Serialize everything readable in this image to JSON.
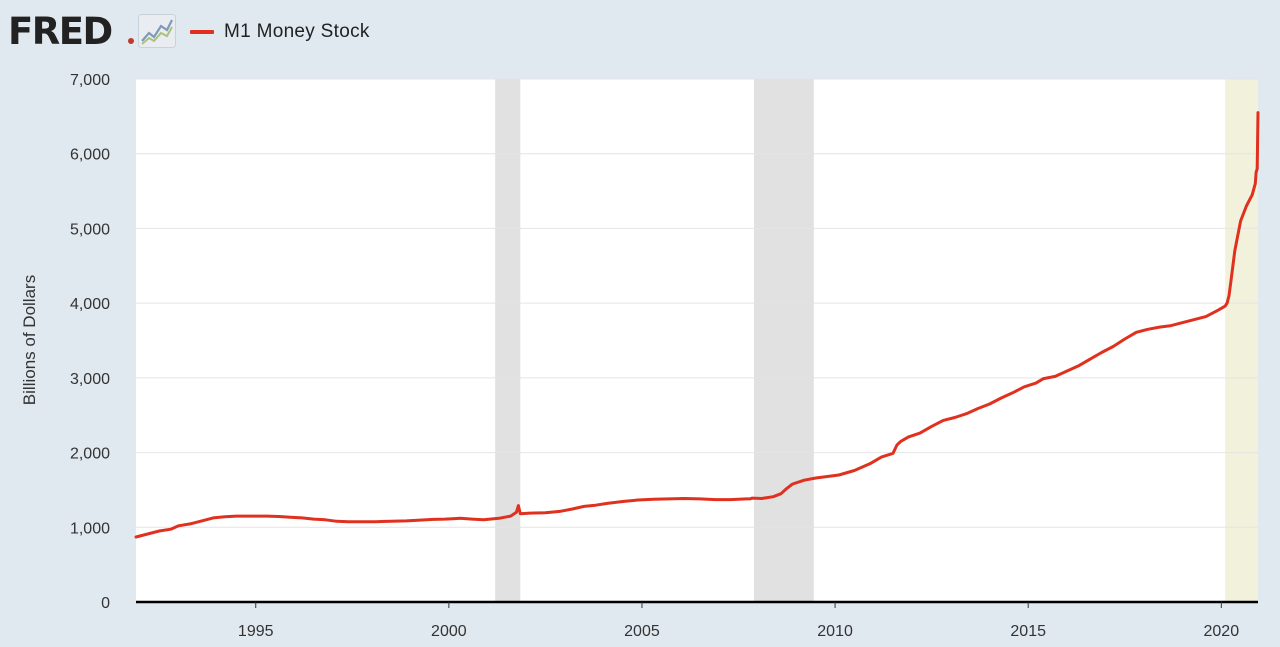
{
  "header": {
    "logo_text": "FRED",
    "legend_label": "M1 Money Stock"
  },
  "colors": {
    "series": "#e0301e",
    "recession": "#e1e1e1",
    "covid": "#f2f1dc",
    "grid": "#e4e4e4",
    "plot_bg": "#ffffff",
    "page_bg": "#e1e9f0"
  },
  "chart_data": {
    "type": "line",
    "title": "",
    "xlabel": "",
    "ylabel": "Billions of Dollars",
    "xlim": [
      1991.9,
      2020.95
    ],
    "ylim": [
      0,
      7000
    ],
    "x_ticks": [
      1995,
      2000,
      2005,
      2010,
      2015,
      2020
    ],
    "x_tick_labels": [
      "1995",
      "2000",
      "2005",
      "2010",
      "2015",
      "2020"
    ],
    "y_ticks": [
      0,
      1000,
      2000,
      3000,
      4000,
      5000,
      6000,
      7000
    ],
    "y_tick_labels": [
      "0",
      "1,000",
      "2,000",
      "3,000",
      "4,000",
      "5,000",
      "6,000",
      "7,000"
    ],
    "grid": "horizontal",
    "shaded_periods": [
      {
        "start": 2001.2,
        "end": 2001.85,
        "kind": "recession"
      },
      {
        "start": 2007.9,
        "end": 2009.45,
        "kind": "recession"
      },
      {
        "start": 2020.1,
        "end": 2020.95,
        "kind": "covid"
      }
    ],
    "series": [
      {
        "name": "M1 Money Stock",
        "x": [
          1991.9,
          1992.2,
          1992.5,
          1992.8,
          1993.0,
          1993.3,
          1993.6,
          1993.9,
          1994.2,
          1994.5,
          1994.8,
          1995.0,
          1995.3,
          1995.6,
          1995.9,
          1996.2,
          1996.5,
          1996.8,
          1997.1,
          1997.4,
          1997.8,
          1998.1,
          1998.5,
          1998.9,
          1999.2,
          1999.6,
          1999.9,
          2000.1,
          2000.3,
          2000.6,
          2000.9,
          2001.0,
          2001.3,
          2001.6,
          2001.75,
          2001.8,
          2001.85,
          2002.1,
          2002.5,
          2002.9,
          2003.2,
          2003.5,
          2003.8,
          2004.1,
          2004.5,
          2004.9,
          2005.3,
          2005.7,
          2006.1,
          2006.5,
          2006.9,
          2007.3,
          2007.7,
          2007.8,
          2007.85,
          2008.1,
          2008.4,
          2008.6,
          2008.75,
          2008.9,
          2009.2,
          2009.5,
          2009.8,
          2010.1,
          2010.5,
          2010.9,
          2011.2,
          2011.5,
          2011.6,
          2011.7,
          2011.9,
          2012.2,
          2012.5,
          2012.8,
          2013.1,
          2013.4,
          2013.7,
          2014.0,
          2014.3,
          2014.6,
          2014.9,
          2015.2,
          2015.4,
          2015.7,
          2016.0,
          2016.3,
          2016.6,
          2016.9,
          2017.2,
          2017.5,
          2017.8,
          2018.1,
          2018.4,
          2018.7,
          2019.0,
          2019.3,
          2019.6,
          2019.9,
          2020.1,
          2020.15,
          2020.2,
          2020.25,
          2020.35,
          2020.5,
          2020.65,
          2020.8,
          2020.88,
          2020.9,
          2020.93,
          2020.95
        ],
        "values": [
          870,
          910,
          950,
          975,
          1020,
          1045,
          1085,
          1125,
          1140,
          1150,
          1150,
          1150,
          1150,
          1145,
          1135,
          1125,
          1110,
          1100,
          1080,
          1075,
          1075,
          1075,
          1080,
          1085,
          1095,
          1105,
          1110,
          1115,
          1120,
          1110,
          1100,
          1105,
          1120,
          1150,
          1200,
          1290,
          1180,
          1190,
          1195,
          1215,
          1245,
          1280,
          1295,
          1320,
          1345,
          1365,
          1375,
          1380,
          1385,
          1380,
          1370,
          1370,
          1380,
          1380,
          1390,
          1385,
          1410,
          1450,
          1520,
          1580,
          1630,
          1660,
          1680,
          1700,
          1760,
          1850,
          1940,
          1990,
          2100,
          2150,
          2210,
          2260,
          2350,
          2430,
          2470,
          2520,
          2590,
          2650,
          2730,
          2800,
          2880,
          2930,
          2990,
          3020,
          3090,
          3160,
          3250,
          3340,
          3420,
          3520,
          3610,
          3650,
          3680,
          3700,
          3740,
          3780,
          3820,
          3900,
          3960,
          4000,
          4100,
          4300,
          4700,
          5100,
          5300,
          5450,
          5600,
          5750,
          5800,
          6550
        ]
      }
    ]
  }
}
